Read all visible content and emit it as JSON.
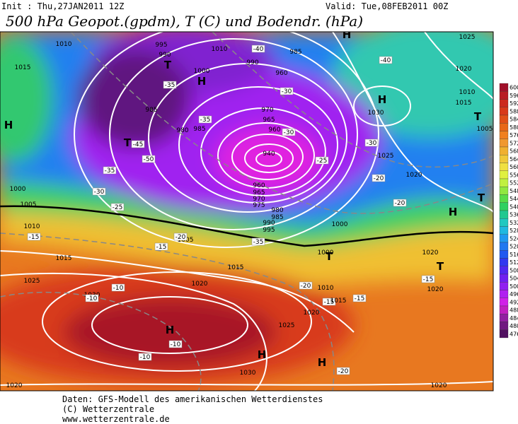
{
  "header": {
    "init": "Init : Thu,27JAN2011 12Z",
    "valid": "Valid: Tue,08FEB2011 00Z",
    "title": "500 hPa Geopot.(gpdm), T (C) und Bodendr. (hPa)"
  },
  "map": {
    "labels": [
      "1010",
      "1015",
      "H",
      "T",
      "995",
      "990",
      "1000",
      "H",
      "985",
      "980",
      "985",
      "T",
      "-45",
      "1010",
      "-40",
      "990",
      "960",
      "985",
      "H",
      "-40",
      "H",
      "1030",
      "970",
      "965",
      "960",
      "940",
      "1025",
      "1020",
      "T",
      "1005",
      "1020",
      "1010",
      "1015",
      "1025",
      "1000",
      "1005",
      "1010",
      "1015",
      "1025",
      "1030",
      "H",
      "H",
      "H",
      "1030",
      "1025",
      "1020",
      "1015",
      "1005",
      "T",
      "T",
      "1020",
      "1020",
      "-15",
      "-15",
      "-20",
      "-35",
      "-30",
      "-50",
      "-25",
      "-10",
      "-10",
      "-10",
      "-10",
      "-20",
      "-20",
      "-15",
      "-15",
      "-15",
      "-20",
      "-20",
      "-30",
      "-30",
      "-30",
      "-35",
      "-35",
      "-35",
      "-25",
      "1000",
      "1000",
      "1010",
      "1020",
      "1015",
      "1020",
      "1020",
      "960",
      "965",
      "970",
      "975",
      "980",
      "985",
      "990",
      "995",
      "H",
      "T"
    ]
  },
  "colorbar": {
    "labels": [
      600,
      596,
      592,
      588,
      584,
      580,
      576,
      572,
      568,
      564,
      560,
      556,
      552,
      548,
      544,
      540,
      536,
      532,
      528,
      524,
      520,
      516,
      512,
      508,
      504,
      500,
      496,
      492,
      488,
      484,
      480,
      476
    ],
    "colors": [
      "#a0102a",
      "#b81c24",
      "#cc2a1e",
      "#d83a1a",
      "#e05018",
      "#e86818",
      "#f08020",
      "#f09830",
      "#f0b030",
      "#f0c838",
      "#f0e040",
      "#e0f040",
      "#c0f040",
      "#90e840",
      "#58dc48",
      "#30d060",
      "#20c890",
      "#20c8c0",
      "#20b8e0",
      "#2098f0",
      "#2078f0",
      "#2058f0",
      "#3038f0",
      "#5028f0",
      "#7020f0",
      "#9020f0",
      "#b020f0",
      "#d020e8",
      "#c020c0",
      "#9020a0",
      "#701880",
      "#501060"
    ]
  },
  "footer": {
    "lines": [
      "Daten: GFS-Modell des amerikanischen Wetterdienstes",
      "(C) Wetterzentrale",
      "www.wetterzentrale.de"
    ]
  }
}
